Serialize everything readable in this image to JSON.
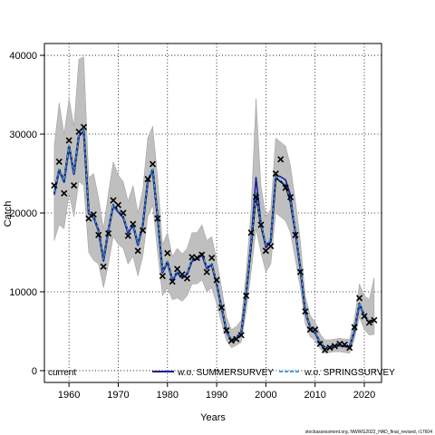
{
  "chart_data": {
    "type": "line",
    "xlabel": "Years",
    "ylabel": "Catch",
    "xlim": [
      1955,
      2023.5
    ],
    "ylim": [
      -1500,
      41500
    ],
    "xticks": [
      1960,
      1970,
      1980,
      1990,
      2000,
      2010,
      2020
    ],
    "yticks": [
      0,
      10000,
      20000,
      30000,
      40000
    ],
    "grid": true,
    "legend_position": "bottom",
    "footnote": "stockassessment.org, NWWG2022_HAD_final_revised, r17604",
    "x": [
      1957,
      1958,
      1959,
      1960,
      1961,
      1962,
      1963,
      1964,
      1965,
      1966,
      1967,
      1968,
      1969,
      1970,
      1971,
      1972,
      1973,
      1974,
      1975,
      1976,
      1977,
      1978,
      1979,
      1980,
      1981,
      1982,
      1983,
      1984,
      1985,
      1986,
      1987,
      1988,
      1989,
      1990,
      1991,
      1992,
      1993,
      1994,
      1995,
      1996,
      1997,
      1998,
      1999,
      2000,
      2001,
      2002,
      2003,
      2004,
      2005,
      2006,
      2007,
      2008,
      2009,
      2010,
      2011,
      2012,
      2013,
      2014,
      2015,
      2016,
      2017,
      2018,
      2019,
      2020,
      2021,
      2022
    ],
    "series": [
      {
        "name": "current",
        "color": "#000000",
        "style": "solid",
        "values": [
          22500,
          25500,
          24000,
          28500,
          25000,
          29800,
          30500,
          20000,
          19500,
          17800,
          14000,
          17800,
          21000,
          20200,
          19500,
          17500,
          18500,
          16000,
          18500,
          24000,
          25500,
          19500,
          12500,
          13800,
          11500,
          12500,
          11800,
          12300,
          14000,
          14200,
          14800,
          13000,
          13500,
          11000,
          8000,
          5000,
          3800,
          4200,
          4800,
          9800,
          16000,
          22500,
          18500,
          15800,
          16500,
          24500,
          24000,
          23500,
          21500,
          17500,
          13000,
          7500,
          5500,
          4800,
          3600,
          2900,
          3000,
          3100,
          3200,
          3100,
          3000,
          5000,
          8500,
          7000,
          6200,
          6500
        ],
        "lower": [
          16500,
          18500,
          18000,
          22500,
          19500,
          24000,
          23500,
          15000,
          14000,
          13500,
          10500,
          13500,
          17000,
          16000,
          15500,
          13500,
          14500,
          12000,
          14500,
          19500,
          21000,
          15000,
          9500,
          10500,
          9000,
          9200,
          8800,
          9500,
          11000,
          11000,
          11500,
          10000,
          10500,
          8500,
          6000,
          3800,
          2900,
          3200,
          3600,
          7500,
          12500,
          18000,
          15000,
          12500,
          13500,
          20000,
          19500,
          19000,
          17500,
          14000,
          10500,
          6000,
          4300,
          3800,
          2800,
          2200,
          2300,
          2400,
          2400,
          2300,
          2200,
          4000,
          6800,
          5200,
          4500,
          4600
        ],
        "upper": [
          28500,
          34000,
          30000,
          34500,
          31000,
          39500,
          39800,
          24500,
          25000,
          22000,
          18000,
          22500,
          26500,
          24800,
          24000,
          21500,
          23500,
          20000,
          23000,
          29500,
          31000,
          24500,
          16000,
          17500,
          14500,
          15500,
          14800,
          15500,
          17500,
          17500,
          18500,
          16500,
          17000,
          14000,
          10500,
          6800,
          5200,
          5600,
          6400,
          12500,
          20500,
          34500,
          23500,
          19500,
          20500,
          29500,
          29000,
          28500,
          26000,
          21500,
          16500,
          9500,
          7000,
          6200,
          4700,
          3900,
          3900,
          4000,
          4100,
          4000,
          4000,
          6500,
          11000,
          9500,
          9000,
          11800
        ]
      },
      {
        "name": "w.o. SUMMERSURVEY",
        "color": "#1c1c9c",
        "style": "solid",
        "values": [
          22300,
          25400,
          23900,
          28400,
          24900,
          29700,
          30400,
          19900,
          19400,
          17700,
          13900,
          17700,
          20900,
          20100,
          19400,
          17400,
          18400,
          15900,
          18400,
          23900,
          25400,
          19400,
          12400,
          13700,
          11400,
          12400,
          11700,
          12200,
          13900,
          14100,
          14700,
          12900,
          13400,
          10900,
          7900,
          4950,
          3750,
          4150,
          4750,
          9700,
          16500,
          24500,
          18800,
          15600,
          16300,
          24800,
          24600,
          24200,
          22300,
          17300,
          12900,
          7450,
          5450,
          4750,
          3550,
          2870,
          2970,
          3070,
          3170,
          3070,
          2970,
          4950,
          8400,
          6900,
          6100,
          6400
        ]
      },
      {
        "name": "w.o. SPRINGSURVEY",
        "color": "#3aa6e0",
        "style": "dashed",
        "values": [
          22600,
          25600,
          24100,
          28600,
          25100,
          29900,
          30600,
          20100,
          19600,
          17900,
          14100,
          17900,
          21100,
          20300,
          19600,
          17600,
          18600,
          16100,
          18600,
          24100,
          25600,
          19600,
          12600,
          13900,
          11600,
          12600,
          11900,
          12400,
          14100,
          14300,
          14900,
          13100,
          13600,
          11100,
          8100,
          5050,
          3850,
          4250,
          4850,
          9900,
          16100,
          22600,
          18600,
          15900,
          16600,
          24600,
          24100,
          23600,
          21600,
          17600,
          13100,
          7550,
          5550,
          4850,
          3650,
          2930,
          3030,
          3130,
          3230,
          3130,
          3030,
          5050,
          8600,
          7100,
          6300,
          6600
        ]
      }
    ],
    "observed": {
      "marker": "x",
      "x": [
        1957,
        1958,
        1959,
        1960,
        1961,
        1962,
        1963,
        1964,
        1965,
        1966,
        1967,
        1968,
        1969,
        1970,
        1971,
        1972,
        1973,
        1974,
        1975,
        1976,
        1977,
        1978,
        1979,
        1980,
        1981,
        1982,
        1983,
        1984,
        1985,
        1986,
        1987,
        1988,
        1989,
        1990,
        1991,
        1992,
        1993,
        1994,
        1995,
        1996,
        1997,
        1998,
        1999,
        2000,
        2001,
        2002,
        2003,
        2004,
        2005,
        2006,
        2007,
        2008,
        2009,
        2010,
        2011,
        2012,
        2013,
        2014,
        2015,
        2016,
        2017,
        2018,
        2019,
        2020,
        2021,
        2022
      ],
      "y": [
        23500,
        26500,
        22500,
        29200,
        23500,
        30300,
        30900,
        19300,
        19800,
        17200,
        13200,
        17400,
        21600,
        21000,
        20000,
        17100,
        18600,
        15200,
        17800,
        24300,
        26200,
        19300,
        12000,
        14900,
        11300,
        12900,
        12200,
        11700,
        14400,
        14300,
        14700,
        12500,
        14300,
        11500,
        8000,
        5100,
        3800,
        4000,
        4500,
        9500,
        17500,
        22000,
        18500,
        15200,
        15800,
        25000,
        26800,
        23200,
        22000,
        17200,
        12500,
        7500,
        5200,
        5200,
        3400,
        2600,
        2900,
        3100,
        3400,
        3300,
        2900,
        5500,
        9200,
        6900,
        6100,
        6400
      ]
    }
  }
}
